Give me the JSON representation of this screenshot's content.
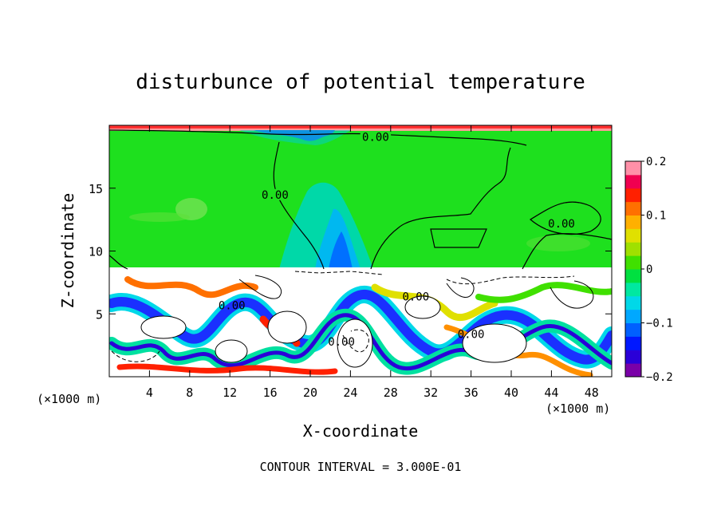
{
  "chart_data": {
    "type": "heatmap",
    "title": "disturbunce of potential temperature",
    "xlabel": "X-coordinate",
    "ylabel": "Z-coordinate",
    "x_unit_left": "(×1000 m)",
    "x_unit_right": "(×1000 m)",
    "xlim": [
      0,
      50
    ],
    "ylim": [
      0,
      20
    ],
    "x_ticks": [
      4,
      8,
      12,
      16,
      20,
      24,
      28,
      32,
      36,
      40,
      44,
      48
    ],
    "y_ticks": [
      5,
      10,
      15
    ],
    "colorbar": {
      "range": [
        -0.2,
        0.2
      ],
      "ticks": [
        {
          "value": 0.2,
          "label": "0.2"
        },
        {
          "value": 0.1,
          "label": "0.1"
        },
        {
          "value": 0,
          "label": "0"
        },
        {
          "value": -0.1,
          "label": "−0.1"
        },
        {
          "value": -0.2,
          "label": "−0.2"
        }
      ],
      "colors": [
        "#7a00a8",
        "#2a00d8",
        "#0018ff",
        "#0060ff",
        "#00a8ff",
        "#00d8e8",
        "#00e8a0",
        "#00e040",
        "#40e000",
        "#a0e000",
        "#e0e000",
        "#ffb000",
        "#ff7000",
        "#ff2000",
        "#f00050",
        "#ff90a8"
      ]
    },
    "contour_labels": [
      {
        "text": "0.00",
        "x": 26.5,
        "y": 18.9
      },
      {
        "text": "0.00",
        "x": 16.5,
        "y": 14.3
      },
      {
        "text": "0.00",
        "x": 45.0,
        "y": 12.0
      },
      {
        "text": "0.00",
        "x": 12.2,
        "y": 5.5
      },
      {
        "text": "0.00",
        "x": 23.1,
        "y": 2.6
      },
      {
        "text": "0.00",
        "x": 36.0,
        "y": 3.2
      },
      {
        "text": "0.00",
        "x": 30.5,
        "y": 6.2
      }
    ],
    "contour_interval_text": "CONTOUR INTERVAL = 3.000E-01",
    "grid": false
  }
}
